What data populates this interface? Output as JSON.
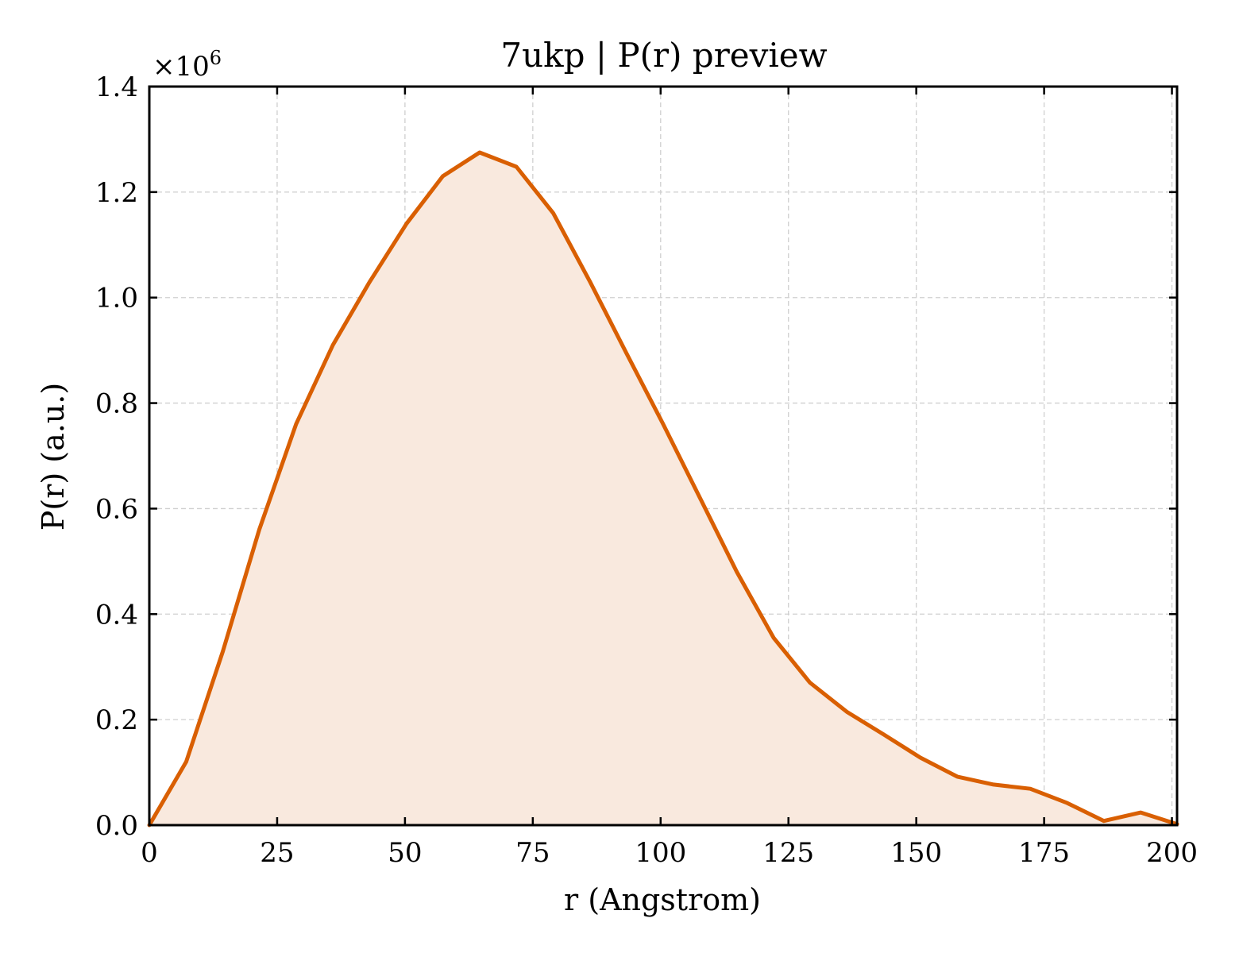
{
  "chart_data": {
    "type": "area",
    "title": "7ukp | P(r) preview",
    "xlabel": "r (Angstrom)",
    "ylabel": "P(r) (a.u.)",
    "y_multiplier_base": "×10",
    "y_multiplier_exponent": "6",
    "xlim": [
      0,
      201
    ],
    "ylim": [
      0,
      1.4
    ],
    "y_unit_scale": 1000000,
    "x_ticks": [
      0,
      25,
      50,
      75,
      100,
      125,
      150,
      175,
      200
    ],
    "x_tick_labels": [
      "0",
      "25",
      "50",
      "75",
      "100",
      "125",
      "150",
      "175",
      "200"
    ],
    "y_ticks": [
      0,
      0.2,
      0.4,
      0.6,
      0.8,
      1.0,
      1.2,
      1.4
    ],
    "y_tick_labels": [
      "0.0",
      "0.2",
      "0.4",
      "0.6",
      "0.8",
      "1.0",
      "1.2",
      "1.4"
    ],
    "grid": true,
    "line_color": "#d95f02",
    "fill_color": "#f9e9de",
    "series": [
      {
        "x": [
          0,
          7.2,
          14.4,
          21.5,
          28.7,
          35.9,
          43.1,
          50.3,
          57.4,
          64.6,
          71.8,
          79.0,
          86.2,
          93.3,
          100.5,
          107.7,
          114.9,
          122.1,
          129.2,
          136.4,
          143.6,
          150.8,
          158.0,
          165.1,
          172.3,
          179.5,
          186.7,
          193.9,
          201.0
        ],
        "y": [
          0.0,
          0.12,
          0.33,
          0.56,
          0.76,
          0.91,
          1.03,
          1.14,
          1.23,
          1.275,
          1.248,
          1.16,
          1.03,
          0.895,
          0.76,
          0.62,
          0.48,
          0.355,
          0.27,
          0.215,
          0.172,
          0.128,
          0.092,
          0.077,
          0.069,
          0.042,
          0.008,
          0.024,
          0.002
        ]
      }
    ]
  }
}
